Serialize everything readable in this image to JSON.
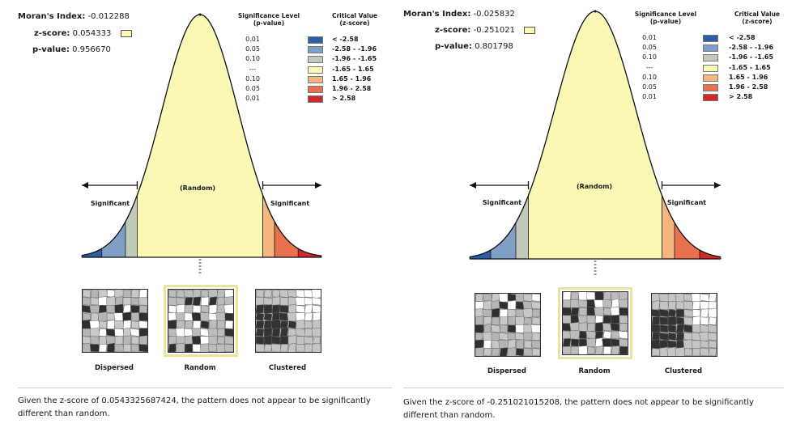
{
  "panels": [
    {
      "morans_label": "Moran's Index:",
      "morans_value": "-0.012288",
      "z_label": "z-score:",
      "z_value": "0.054333",
      "p_label": "p-value:",
      "p_value": "0.956670",
      "message": "Given the z-score of 0.0543325687424, the pattern does not appear to be significantly different than random."
    },
    {
      "morans_label": "Moran's Index:",
      "morans_value": "-0.025832",
      "z_label": "z-score:",
      "z_value": "-0.251021",
      "p_label": "p-value:",
      "p_value": "0.801798",
      "message": "Given the z-score of -0.251021015208, the pattern does not appear to be significantly different than random."
    }
  ],
  "legend": {
    "sig_header_line1": "Significance Level",
    "sig_header_line2": "(p-value)",
    "crit_header_line1": "Critical Value",
    "crit_header_line2": "(z-score)",
    "rows": [
      {
        "p": "0.01",
        "range": "< -2.58",
        "color": "#2b5fa6"
      },
      {
        "p": "0.05",
        "range": "-2.58 - -1.96",
        "color": "#7f9fc7"
      },
      {
        "p": "0.10",
        "range": "-1.96 - -1.65",
        "color": "#c1c9b8"
      },
      {
        "p": "---",
        "range": "-1.65 - 1.65",
        "color": "#fbf8b5"
      },
      {
        "p": "0.10",
        "range": "1.65 - 1.96",
        "color": "#f5b57f"
      },
      {
        "p": "0.05",
        "range": "1.96 - 2.58",
        "color": "#e8714f"
      },
      {
        "p": "0.01",
        "range": "> 2.58",
        "color": "#cf2a2a"
      }
    ]
  },
  "curve_labels": {
    "random": "(Random)",
    "significant_left": "Significant",
    "significant_right": "Significant"
  },
  "patterns": [
    {
      "label": "Dispersed",
      "icon": "dispersed-map-icon"
    },
    {
      "label": "Random",
      "icon": "random-map-icon"
    },
    {
      "label": "Clustered",
      "icon": "clustered-map-icon"
    }
  ],
  "chart_data": [
    {
      "type": "area",
      "title": "",
      "x": [
        -4,
        -2.58,
        -1.96,
        -1.65,
        1.65,
        1.96,
        2.58,
        4
      ],
      "xlabel": "z-score",
      "ylabel": "",
      "zones": [
        "< -2.58",
        "-2.58 - -1.96",
        "-1.96 - -1.65",
        "-1.65 - 1.65",
        "1.65 - 1.96",
        "1.96 - 2.58",
        "> 2.58"
      ],
      "z_score": 0.054333,
      "p_value": 0.95667
    },
    {
      "type": "area",
      "title": "",
      "x": [
        -4,
        -2.58,
        -1.96,
        -1.65,
        1.65,
        1.96,
        2.58,
        4
      ],
      "xlabel": "z-score",
      "ylabel": "",
      "zones": [
        "< -2.58",
        "-2.58 - -1.96",
        "-1.96 - -1.65",
        "-1.65 - 1.65",
        "1.65 - 1.96",
        "1.96 - 2.58",
        "> 2.58"
      ],
      "z_score": -0.251021,
      "p_value": 0.801798
    }
  ]
}
